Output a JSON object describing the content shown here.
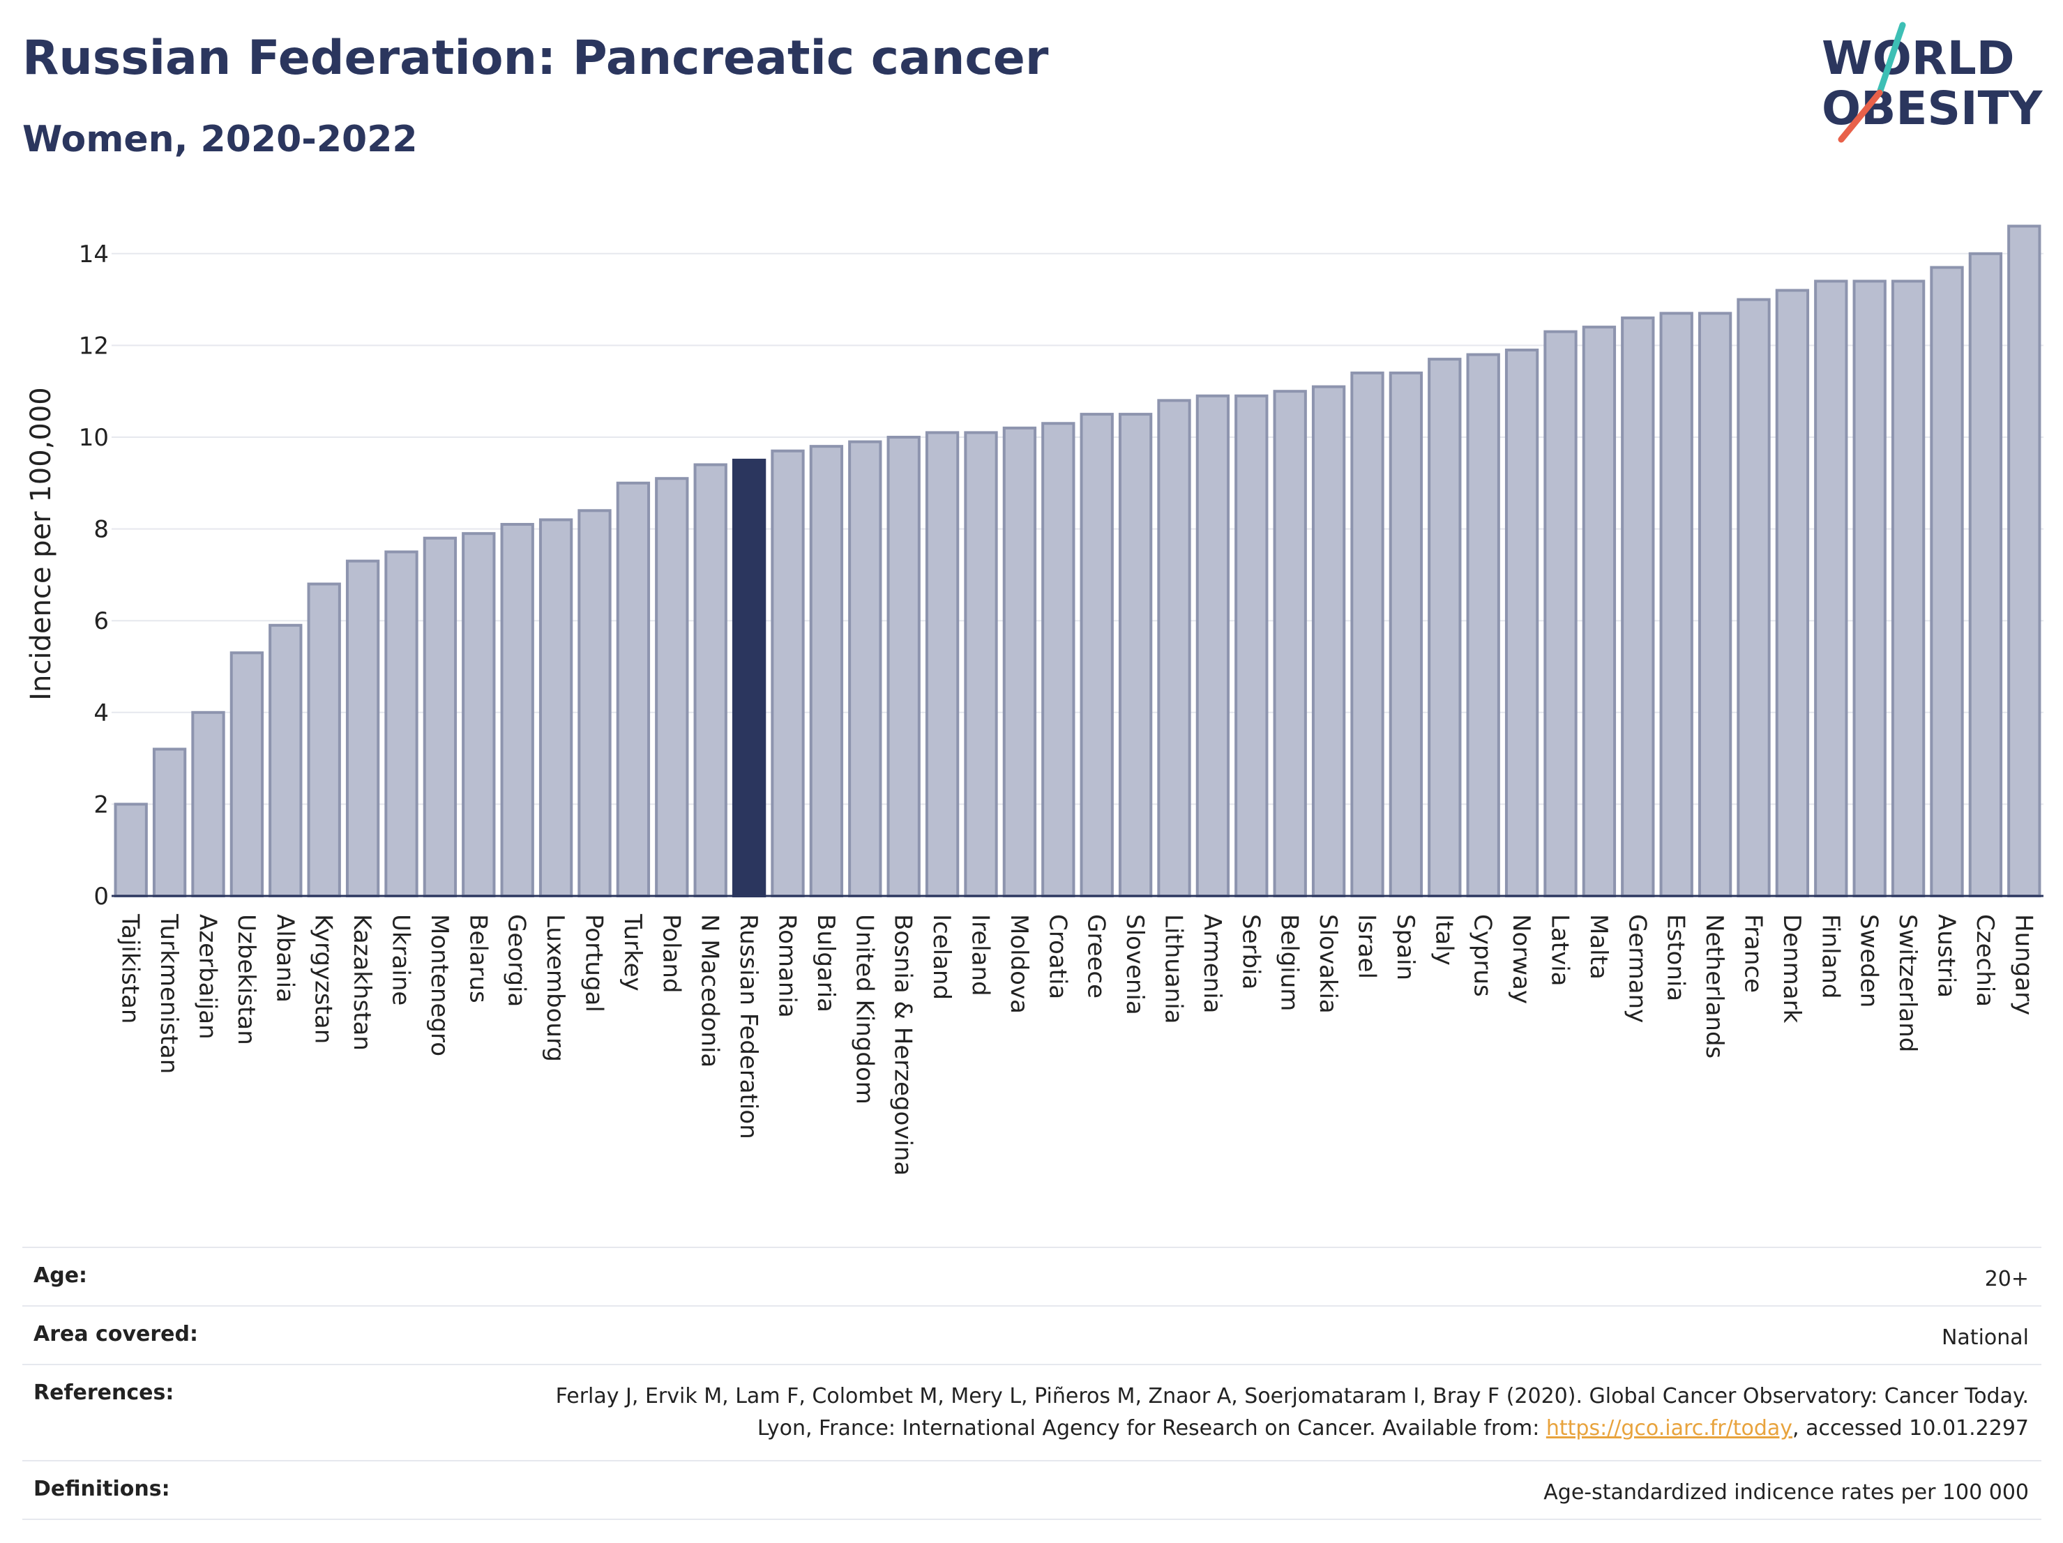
{
  "header": {
    "title": "Russian Federation: Pancreatic cancer",
    "subtitle": "Women, 2020-2022"
  },
  "logo": {
    "line1": "WORLD",
    "line2": "OBESITY",
    "accent_colors": [
      "#3dbfb5",
      "#e8614a"
    ]
  },
  "colors": {
    "bar_default": "#b9bed0",
    "bar_border": "#8d94ae",
    "bar_highlight": "#2b365e",
    "text_dark": "#2b365e",
    "link": "#e8a33d"
  },
  "chart_data": {
    "type": "bar",
    "title": "Russian Federation: Pancreatic cancer",
    "subtitle": "Women, 2020-2022",
    "ylabel": "Incidence per 100,000",
    "xlabel": "",
    "ylim": [
      0,
      15
    ],
    "yticks": [
      0,
      2,
      4,
      6,
      8,
      10,
      12,
      14
    ],
    "grid": true,
    "highlight": "Russian Federation",
    "categories": [
      "Tajikistan",
      "Turkmenistan",
      "Azerbaijan",
      "Uzbekistan",
      "Albania",
      "Kyrgyzstan",
      "Kazakhstan",
      "Ukraine",
      "Montenegro",
      "Belarus",
      "Georgia",
      "Luxembourg",
      "Portugal",
      "Turkey",
      "Poland",
      "N Macedonia",
      "Russian Federation",
      "Romania",
      "Bulgaria",
      "United Kingdom",
      "Bosnia & Herzegovina",
      "Iceland",
      "Ireland",
      "Moldova",
      "Croatia",
      "Greece",
      "Slovenia",
      "Lithuania",
      "Armenia",
      "Serbia",
      "Belgium",
      "Slovakia",
      "Israel",
      "Spain",
      "Italy",
      "Cyprus",
      "Norway",
      "Latvia",
      "Malta",
      "Germany",
      "Estonia",
      "Netherlands",
      "France",
      "Denmark",
      "Finland",
      "Sweden",
      "Switzerland",
      "Austria",
      "Czechia",
      "Hungary"
    ],
    "values": [
      2.0,
      3.2,
      4.0,
      5.3,
      5.9,
      6.8,
      7.3,
      7.5,
      7.8,
      7.9,
      8.1,
      8.2,
      8.4,
      9.0,
      9.1,
      9.4,
      9.5,
      9.7,
      9.8,
      9.9,
      10.0,
      10.1,
      10.1,
      10.2,
      10.3,
      10.5,
      10.5,
      10.8,
      10.9,
      10.9,
      11.0,
      11.1,
      11.4,
      11.4,
      11.7,
      11.8,
      11.9,
      12.3,
      12.4,
      12.6,
      12.7,
      12.7,
      13.0,
      13.2,
      13.4,
      13.4,
      13.4,
      13.7,
      14.0,
      14.6
    ]
  },
  "meta": {
    "age_label": "Age:",
    "age_value": "20+",
    "area_label": "Area covered:",
    "area_value": "National",
    "references_label": "References:",
    "references_text_1": "Ferlay J, Ervik M, Lam F, Colombet M, Mery L, Piñeros M, Znaor A, Soerjomataram I, Bray F (2020). Global Cancer Observatory: Cancer Today. Lyon, France: International Agency for Research on Cancer. Available from: ",
    "references_link": "https://gco.iarc.fr/today",
    "references_text_2": ", accessed 10.01.2297",
    "definitions_label": "Definitions:",
    "definitions_value": "Age-standardized indicence rates per 100 000"
  }
}
